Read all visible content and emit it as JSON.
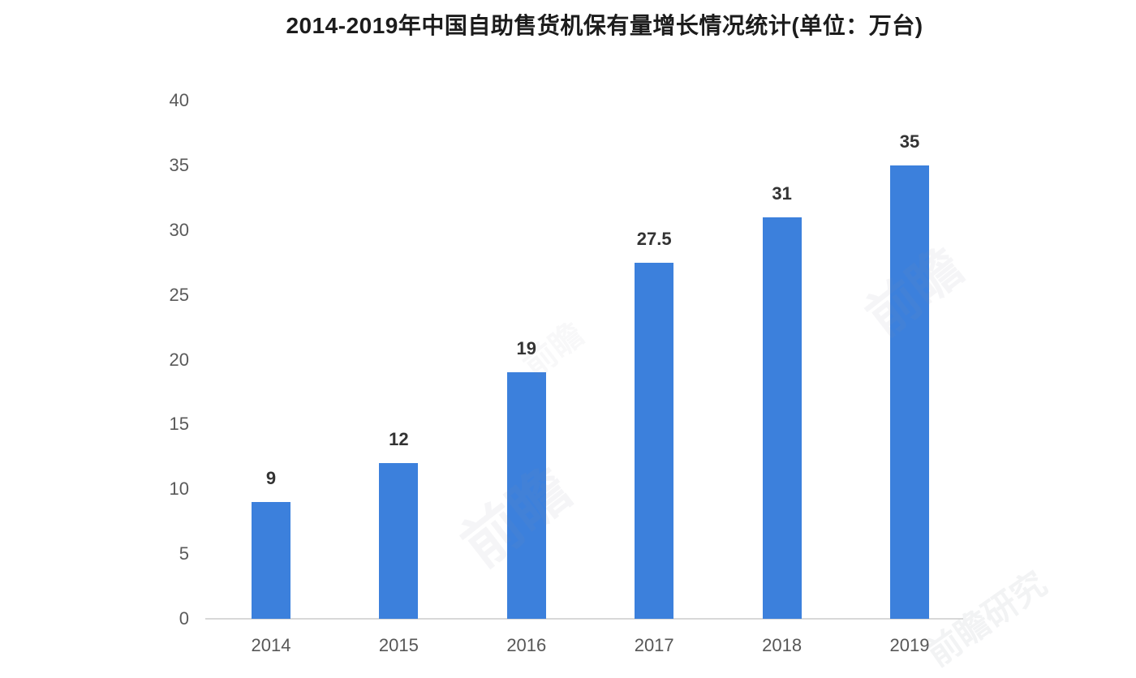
{
  "chart_data": {
    "type": "bar",
    "title": "2014-2019年中国自助售货机保有量增长情况统计(单位：万台)",
    "categories": [
      "2014",
      "2015",
      "2016",
      "2017",
      "2018",
      "2019"
    ],
    "values": [
      9,
      12,
      19,
      27.5,
      31,
      35
    ],
    "value_labels": [
      "9",
      "12",
      "19",
      "27.5",
      "31",
      "35"
    ],
    "y_ticks": [
      0,
      5,
      10,
      15,
      20,
      25,
      30,
      35,
      40
    ],
    "ylim": [
      0,
      40
    ],
    "xlabel": "",
    "ylabel": "",
    "grid": false,
    "legend": "none",
    "bar_color": "#3c80dc"
  },
  "colors": {
    "bar": "#3c80dc",
    "axis_line": "#d8d8d8",
    "y_tick_label": "#5a5a5a",
    "x_tick_label": "#575757",
    "value_label": "#333333",
    "title": "#1c1c1c",
    "background": "#ffffff"
  },
  "watermark": {
    "text": "前瞻",
    "text_small": "前瞻研究"
  }
}
